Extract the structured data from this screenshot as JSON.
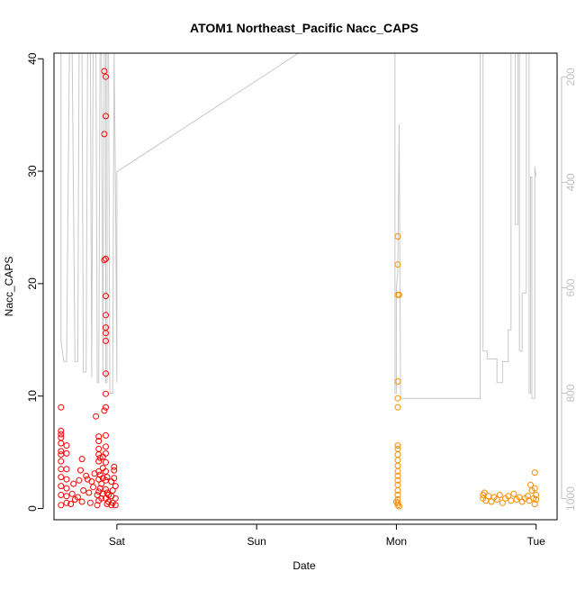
{
  "chart_data": {
    "type": "scatter",
    "title": "ATOM1 Northeast_Pacific Nacc_CAPS",
    "xlabel": "Date",
    "ylabel": "Nacc_CAPS",
    "x_axis": {
      "ticks": [
        {
          "label": "Sat",
          "value": 1.0
        },
        {
          "label": "Sun",
          "value": 2.0
        },
        {
          "label": "Mon",
          "value": 3.0
        },
        {
          "label": "Tue",
          "value": 4.0
        }
      ],
      "xlim": [
        0.55,
        4.15
      ]
    },
    "y_axis": {
      "ylim": [
        -1.0,
        40.5
      ],
      "ticks": [
        0,
        10,
        20,
        30,
        40
      ]
    },
    "y2_axis": {
      "label": "",
      "ylim": [
        1040,
        155
      ],
      "ticks": [
        200,
        400,
        600,
        800,
        1000
      ],
      "color": "#c0c0c0"
    },
    "colors": {
      "early": "#ff0000",
      "late": "#ff8c00",
      "pressure_line": "#c8c8c8"
    },
    "series": [
      {
        "color": "#ff0000",
        "points": [
          [
            0.6,
            0.3
          ],
          [
            0.6,
            1.2
          ],
          [
            0.6,
            2.0
          ],
          [
            0.6,
            3.5
          ],
          [
            0.6,
            4.2
          ],
          [
            0.6,
            4.8
          ],
          [
            0.6,
            5.1
          ],
          [
            0.6,
            5.8
          ],
          [
            0.6,
            6.3
          ],
          [
            0.6,
            6.6
          ],
          [
            0.6,
            6.9
          ],
          [
            0.6,
            9.0
          ],
          [
            0.6,
            2.8
          ],
          [
            0.64,
            0.5
          ],
          [
            0.64,
            1.1
          ],
          [
            0.64,
            1.8
          ],
          [
            0.64,
            2.6
          ],
          [
            0.64,
            3.5
          ],
          [
            0.64,
            4.9
          ],
          [
            0.64,
            5.6
          ],
          [
            0.67,
            0.4
          ],
          [
            0.68,
            1.3
          ],
          [
            0.69,
            2.2
          ],
          [
            0.7,
            0.8
          ],
          [
            0.72,
            1.0
          ],
          [
            0.73,
            2.5
          ],
          [
            0.74,
            3.4
          ],
          [
            0.75,
            4.4
          ],
          [
            0.75,
            0.6
          ],
          [
            0.76,
            1.6
          ],
          [
            0.78,
            2.9
          ],
          [
            0.79,
            2.6
          ],
          [
            0.8,
            1.4
          ],
          [
            0.81,
            0.5
          ],
          [
            0.82,
            2.4
          ],
          [
            0.83,
            1.9
          ],
          [
            0.84,
            3.1
          ],
          [
            0.85,
            8.2
          ],
          [
            0.86,
            1.2
          ],
          [
            0.86,
            0.3
          ],
          [
            0.87,
            0.7
          ],
          [
            0.87,
            1.5
          ],
          [
            0.87,
            2.6
          ],
          [
            0.87,
            3.3
          ],
          [
            0.87,
            4.2
          ],
          [
            0.87,
            4.8
          ],
          [
            0.87,
            5.3
          ],
          [
            0.87,
            6.0
          ],
          [
            0.87,
            6.4
          ],
          [
            0.88,
            1.8
          ],
          [
            0.88,
            3.0
          ],
          [
            0.88,
            4.5
          ],
          [
            0.89,
            0.9
          ],
          [
            0.89,
            2.2
          ],
          [
            0.9,
            1.3
          ],
          [
            0.9,
            2.7
          ],
          [
            0.9,
            3.6
          ],
          [
            0.9,
            4.6
          ],
          [
            0.91,
            33.3
          ],
          [
            0.91,
            22.1
          ],
          [
            0.91,
            38.9
          ],
          [
            0.91,
            8.7
          ],
          [
            0.92,
            38.4
          ],
          [
            0.92,
            34.9
          ],
          [
            0.92,
            22.2
          ],
          [
            0.92,
            18.9
          ],
          [
            0.92,
            17.2
          ],
          [
            0.92,
            16.1
          ],
          [
            0.92,
            15.6
          ],
          [
            0.92,
            14.9
          ],
          [
            0.92,
            12.0
          ],
          [
            0.92,
            10.2
          ],
          [
            0.92,
            9.0
          ],
          [
            0.92,
            6.5
          ],
          [
            0.92,
            5.5
          ],
          [
            0.92,
            4.9
          ],
          [
            0.92,
            4.1
          ],
          [
            0.92,
            3.3
          ],
          [
            0.92,
            2.5
          ],
          [
            0.92,
            1.7
          ],
          [
            0.92,
            0.9
          ],
          [
            0.93,
            0.4
          ],
          [
            0.93,
            1.4
          ],
          [
            0.93,
            2.8
          ],
          [
            0.94,
            0.6
          ],
          [
            0.94,
            1.2
          ],
          [
            0.96,
            0.3
          ],
          [
            0.96,
            1.1
          ],
          [
            0.96,
            2.4
          ],
          [
            0.97,
            0.5
          ],
          [
            0.97,
            1.6
          ],
          [
            0.98,
            3.4
          ],
          [
            0.98,
            3.7
          ],
          [
            0.98,
            2.7
          ],
          [
            0.99,
            0.9
          ],
          [
            0.99,
            2.0
          ],
          [
            0.99,
            0.3
          ]
        ]
      },
      {
        "color": "#ff8c00",
        "points": [
          [
            3.01,
            24.2
          ],
          [
            3.01,
            21.7
          ],
          [
            3.01,
            19.0
          ],
          [
            3.02,
            19.0
          ],
          [
            3.01,
            11.3
          ],
          [
            3.01,
            9.8
          ],
          [
            3.01,
            9.0
          ],
          [
            3.01,
            5.6
          ],
          [
            3.01,
            5.3
          ],
          [
            3.01,
            4.8
          ],
          [
            3.01,
            4.3
          ],
          [
            3.01,
            3.8
          ],
          [
            3.01,
            3.3
          ],
          [
            3.01,
            2.9
          ],
          [
            3.01,
            2.5
          ],
          [
            3.01,
            2.1
          ],
          [
            3.01,
            1.6
          ],
          [
            3.01,
            1.2
          ],
          [
            3.01,
            0.8
          ],
          [
            3.01,
            0.5
          ],
          [
            3.01,
            0.3
          ],
          [
            3.0,
            0.6
          ],
          [
            3.02,
            0.2
          ],
          [
            3.62,
            1.2
          ],
          [
            3.62,
            0.9
          ],
          [
            3.63,
            1.4
          ],
          [
            3.64,
            0.7
          ],
          [
            3.66,
            1.1
          ],
          [
            3.68,
            0.6
          ],
          [
            3.7,
            1.0
          ],
          [
            3.72,
            0.8
          ],
          [
            3.74,
            1.2
          ],
          [
            3.76,
            0.5
          ],
          [
            3.78,
            0.9
          ],
          [
            3.8,
            1.1
          ],
          [
            3.82,
            0.7
          ],
          [
            3.84,
            1.3
          ],
          [
            3.86,
            0.8
          ],
          [
            3.88,
            1.0
          ],
          [
            3.9,
            0.6
          ],
          [
            3.92,
            0.9
          ],
          [
            3.94,
            1.1
          ],
          [
            3.95,
            0.7
          ],
          [
            3.96,
            2.1
          ],
          [
            3.97,
            1.6
          ],
          [
            3.98,
            0.9
          ],
          [
            3.99,
            3.2
          ],
          [
            3.99,
            1.8
          ],
          [
            3.99,
            0.4
          ],
          [
            4.0,
            0.8
          ],
          [
            4.0,
            1.2
          ]
        ]
      }
    ],
    "pressure_line": {
      "color": "#c8c8c8",
      "points": [
        [
          0.6,
          155
        ],
        [
          0.6,
          700
        ],
        [
          0.62,
          740
        ],
        [
          0.64,
          740
        ],
        [
          0.66,
          155
        ],
        [
          0.68,
          155
        ],
        [
          0.7,
          740
        ],
        [
          0.72,
          740
        ],
        [
          0.73,
          155
        ],
        [
          0.75,
          155
        ],
        [
          0.76,
          760
        ],
        [
          0.78,
          760
        ],
        [
          0.79,
          155
        ],
        [
          0.81,
          155
        ],
        [
          0.82,
          770
        ],
        [
          0.83,
          155
        ],
        [
          0.85,
          155
        ],
        [
          0.86,
          780
        ],
        [
          0.87,
          780
        ],
        [
          0.88,
          155
        ],
        [
          0.89,
          155
        ],
        [
          0.9,
          760
        ],
        [
          0.91,
          155
        ],
        [
          0.92,
          155
        ],
        [
          0.92,
          780
        ],
        [
          0.93,
          780
        ],
        [
          0.93,
          155
        ],
        [
          0.94,
          155
        ],
        [
          0.95,
          800
        ],
        [
          0.97,
          800
        ],
        [
          0.98,
          155
        ],
        [
          0.99,
          410
        ],
        [
          1.0,
          780
        ],
        [
          1.0,
          380
        ],
        [
          2.3,
          155
        ],
        [
          2.5,
          155
        ],
        [
          2.85,
          155
        ],
        [
          2.99,
          155
        ],
        [
          2.99,
          800
        ],
        [
          3.0,
          800
        ],
        [
          3.0,
          600
        ],
        [
          3.01,
          570
        ],
        [
          3.02,
          290
        ],
        [
          3.03,
          810
        ],
        [
          3.6,
          810
        ],
        [
          3.6,
          155
        ],
        [
          3.62,
          155
        ],
        [
          3.62,
          720
        ],
        [
          3.65,
          720
        ],
        [
          3.65,
          735
        ],
        [
          3.7,
          735
        ],
        [
          3.72,
          735
        ],
        [
          3.72,
          780
        ],
        [
          3.76,
          780
        ],
        [
          3.76,
          740
        ],
        [
          3.8,
          740
        ],
        [
          3.8,
          680
        ],
        [
          3.82,
          680
        ],
        [
          3.82,
          155
        ],
        [
          3.85,
          155
        ],
        [
          3.85,
          480
        ],
        [
          3.87,
          480
        ],
        [
          3.87,
          155
        ],
        [
          3.88,
          155
        ],
        [
          3.88,
          720
        ],
        [
          3.9,
          720
        ],
        [
          3.9,
          610
        ],
        [
          3.93,
          610
        ],
        [
          3.93,
          155
        ],
        [
          3.95,
          155
        ],
        [
          3.95,
          800
        ],
        [
          3.96,
          800
        ],
        [
          3.96,
          390
        ],
        [
          3.97,
          390
        ],
        [
          3.97,
          810
        ],
        [
          3.99,
          810
        ],
        [
          3.99,
          370
        ],
        [
          4.0,
          390
        ]
      ]
    }
  }
}
